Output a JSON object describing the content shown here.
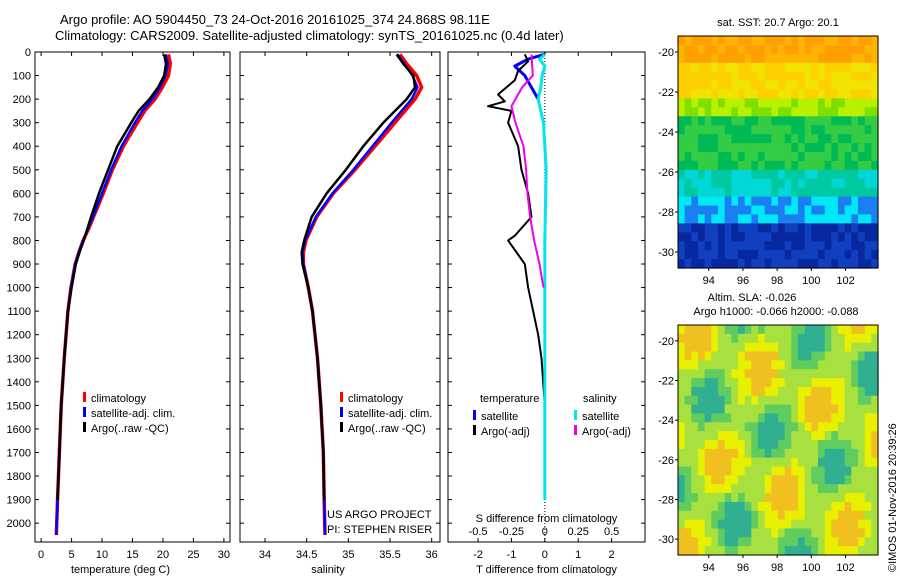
{
  "header": {
    "line1": "Argo profile: AO 5904450_73 24-Oct-2016 20161025_374 24.868S 98.11E",
    "line2": "Climatology: CARS2009. Satellite-adjusted climatology: synTS_20161025.nc (0.4d later)"
  },
  "project": {
    "line1": "US ARGO PROJECT",
    "line2": "PI: STEPHEN RISER"
  },
  "stamp": "©IMOS 01-Nov-2016 20:39:26",
  "colors": {
    "climatology": "#ff0000",
    "satellite": "#0000ff",
    "argo": "#000000",
    "sat_sal": "#00e5ee",
    "argo_sal": "#ee00ee"
  },
  "chart_data": [
    {
      "id": "temperature",
      "type": "line",
      "xlabel": "temperature (deg C)",
      "xlim": [
        -1,
        31
      ],
      "ylim": [
        2080,
        0
      ],
      "xticks": [
        "0",
        "5",
        "10",
        "15",
        "20",
        "25",
        "30"
      ],
      "yticks": [
        "0",
        "100",
        "200",
        "300",
        "400",
        "500",
        "600",
        "700",
        "800",
        "900",
        "1000",
        "1100",
        "1200",
        "1300",
        "1400",
        "1500",
        "1600",
        "1700",
        "1800",
        "1900",
        "2000"
      ],
      "legend": [
        "climatology",
        "satellite-adj. clim.",
        "Argo(..raw -QC)"
      ],
      "series": [
        {
          "name": "climatology",
          "depth": [
            2050,
            1900,
            1700,
            1500,
            1300,
            1100,
            1000,
            900,
            850,
            800,
            750,
            700,
            600,
            500,
            400,
            300,
            250,
            200,
            150,
            100,
            50,
            10
          ],
          "values": [
            2.5,
            2.7,
            3.0,
            3.3,
            3.8,
            4.4,
            4.9,
            5.6,
            6.2,
            6.9,
            7.8,
            8.6,
            10.2,
            11.7,
            13.5,
            15.8,
            17.0,
            18.7,
            19.9,
            20.9,
            21.2,
            20.9
          ]
        },
        {
          "name": "satellite-adj. clim.",
          "depth": [
            2050,
            1900,
            1700,
            1500,
            1300,
            1100,
            1000,
            900,
            850,
            800,
            750,
            700,
            600,
            500,
            400,
            300,
            250,
            200,
            150,
            100,
            50,
            10
          ],
          "values": [
            2.5,
            2.7,
            3.0,
            3.3,
            3.8,
            4.4,
            4.9,
            5.6,
            6.2,
            6.9,
            7.7,
            8.5,
            10.0,
            11.5,
            13.2,
            15.4,
            16.6,
            18.3,
            19.5,
            20.4,
            20.8,
            20.4
          ]
        },
        {
          "name": "Argo(..raw -QC)",
          "depth": [
            1900,
            1700,
            1500,
            1300,
            1100,
            1000,
            900,
            850,
            800,
            750,
            700,
            600,
            500,
            400,
            300,
            250,
            200,
            150,
            100,
            50,
            10
          ],
          "values": [
            2.7,
            3.0,
            3.3,
            3.8,
            4.4,
            5.0,
            5.7,
            6.3,
            7.0,
            7.6,
            8.2,
            9.5,
            11.0,
            12.5,
            14.8,
            16.0,
            17.8,
            19.2,
            20.2,
            20.5,
            20.2
          ]
        }
      ]
    },
    {
      "id": "salinity",
      "type": "line",
      "xlabel": "salinity",
      "xlim": [
        33.7,
        36.1
      ],
      "ylim": [
        2080,
        0
      ],
      "xticks": [
        "34",
        "34.5",
        "35",
        "35.5",
        "36"
      ],
      "legend": [
        "climatology",
        "satellite-adj. clim.",
        "Argo(..raw -QC)"
      ],
      "series": [
        {
          "name": "climatology",
          "depth": [
            2050,
            1900,
            1700,
            1500,
            1300,
            1100,
            1000,
            900,
            850,
            800,
            700,
            600,
            500,
            400,
            300,
            200,
            150,
            100,
            50,
            10
          ],
          "values": [
            34.72,
            34.71,
            34.7,
            34.67,
            34.63,
            34.57,
            34.52,
            34.46,
            34.46,
            34.49,
            34.62,
            34.82,
            35.08,
            35.32,
            35.56,
            35.8,
            35.88,
            35.82,
            35.7,
            35.62
          ]
        },
        {
          "name": "satellite-adj. clim.",
          "depth": [
            2050,
            1900,
            1700,
            1500,
            1300,
            1100,
            1000,
            900,
            850,
            800,
            700,
            600,
            500,
            400,
            300,
            200,
            150,
            100,
            50,
            10
          ],
          "values": [
            34.72,
            34.71,
            34.7,
            34.67,
            34.63,
            34.57,
            34.52,
            34.46,
            34.45,
            34.48,
            34.61,
            34.81,
            35.06,
            35.29,
            35.52,
            35.76,
            35.83,
            35.77,
            35.67,
            35.59
          ]
        },
        {
          "name": "Argo(..raw -QC)",
          "depth": [
            1900,
            1700,
            1500,
            1300,
            1100,
            1000,
            900,
            850,
            800,
            700,
            600,
            500,
            400,
            300,
            200,
            150,
            100,
            50,
            10
          ],
          "values": [
            34.71,
            34.7,
            34.67,
            34.63,
            34.57,
            34.52,
            34.45,
            34.44,
            34.47,
            34.56,
            34.74,
            34.97,
            35.18,
            35.42,
            35.7,
            35.8,
            35.78,
            35.66,
            35.58
          ]
        }
      ]
    },
    {
      "id": "difference",
      "type": "line",
      "xlabel": "T difference from climatology",
      "xlabel_top": "S difference from climatology",
      "xlim": [
        -2.9,
        3.0
      ],
      "ylim": [
        2080,
        0
      ],
      "xticks": [
        "-2",
        "-1",
        "0",
        "1",
        "2"
      ],
      "xticks_top": [
        "-0.5",
        "-0.25",
        "0",
        "0.25",
        "0.5"
      ],
      "legend_titles": [
        "temperature",
        "salinity"
      ],
      "legend": [
        "satellite",
        "Argo(-adj)",
        "satellite",
        "Argo(-adj)"
      ],
      "series": [
        {
          "name": "temperature satellite",
          "depth": [
            10,
            30,
            60,
            100,
            150,
            200
          ],
          "values": [
            0.0,
            -0.5,
            -0.9,
            -0.6,
            -0.4,
            -0.2
          ]
        },
        {
          "name": "temperature Argo(-adj)",
          "depth": [
            10,
            40,
            80,
            120,
            180,
            210,
            230,
            250,
            300,
            400,
            500,
            600,
            700,
            780,
            800,
            900,
            1000,
            1100,
            1200,
            1300,
            1400,
            1500,
            1700,
            1900
          ],
          "values": [
            -0.6,
            -0.5,
            -0.8,
            -0.9,
            -1.4,
            -1.2,
            -1.7,
            -1.0,
            -1.1,
            -0.8,
            -0.7,
            -0.5,
            -0.4,
            -0.9,
            -1.1,
            -0.6,
            -0.5,
            -0.35,
            -0.2,
            -0.1,
            -0.05,
            0.0,
            0.0,
            0.0
          ]
        },
        {
          "name": "salinity satellite",
          "depth": [
            10,
            30,
            60,
            100,
            150,
            200,
            300,
            500,
            800,
            1000,
            1500,
            1900
          ],
          "values": [
            0.0,
            -0.04,
            0.0,
            -0.02,
            -0.03,
            -0.05,
            -0.01,
            0.01,
            0.0,
            0.0,
            0.0,
            0.0
          ]
        },
        {
          "name": "salinity Argo(-adj)",
          "depth": [
            10,
            100,
            150,
            200,
            230,
            300,
            400,
            500,
            600,
            700,
            800,
            900,
            1000
          ],
          "values": [
            -0.1,
            -0.09,
            -0.17,
            -0.22,
            -0.25,
            -0.22,
            -0.16,
            -0.14,
            -0.13,
            -0.11,
            -0.08,
            -0.04,
            -0.01
          ]
        }
      ]
    },
    {
      "id": "sst_map",
      "type": "heatmap",
      "title": "sat. SST: 20.7 Argo: 20.1",
      "xticks": [
        "94",
        "96",
        "98",
        "100",
        "102"
      ],
      "yticks": [
        "-20",
        "-22",
        "-24",
        "-26",
        "-28",
        "-30"
      ],
      "xlim": [
        92.2,
        103.9
      ],
      "ylim": [
        -30.8,
        -19.2
      ]
    },
    {
      "id": "sla_map",
      "type": "heatmap",
      "title": "Altim. SLA: -0.026",
      "subtitle": "Argo h1000: -0.066 h2000: -0.088",
      "xticks": [
        "94",
        "96",
        "98",
        "100",
        "102"
      ],
      "yticks": [
        "-20",
        "-22",
        "-24",
        "-26",
        "-28",
        "-30"
      ],
      "xlim": [
        92.2,
        103.9
      ],
      "ylim": [
        -30.8,
        -19.2
      ]
    }
  ]
}
